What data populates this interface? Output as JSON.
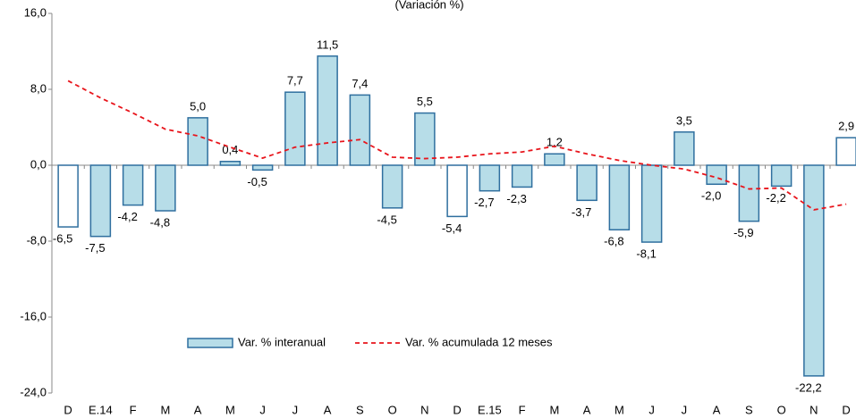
{
  "chart_data": {
    "type": "bar",
    "title": "(Variación %)",
    "categories": [
      "D",
      "E.14",
      "F",
      "M",
      "A",
      "M",
      "J",
      "J",
      "A",
      "S",
      "O",
      "N",
      "D",
      "E.15",
      "F",
      "M",
      "A",
      "M",
      "J",
      "J",
      "A",
      "S",
      "O",
      "N",
      "D"
    ],
    "series": [
      {
        "name": "Var. % interanual",
        "type": "bar",
        "stroke": "#2f6f9f",
        "colors": [
          "#ffffff",
          "#b7dde8",
          "#b7dde8",
          "#b7dde8",
          "#b7dde8",
          "#b7dde8",
          "#b7dde8",
          "#b7dde8",
          "#b7dde8",
          "#b7dde8",
          "#b7dde8",
          "#b7dde8",
          "#ffffff",
          "#b7dde8",
          "#b7dde8",
          "#b7dde8",
          "#b7dde8",
          "#b7dde8",
          "#b7dde8",
          "#b7dde8",
          "#b7dde8",
          "#b7dde8",
          "#b7dde8",
          "#b7dde8",
          "#ffffff"
        ],
        "values": [
          -6.5,
          -7.5,
          -4.2,
          -4.8,
          5.0,
          0.4,
          -0.5,
          7.7,
          11.5,
          7.4,
          -4.5,
          5.5,
          -5.4,
          -2.7,
          -2.3,
          1.2,
          -3.7,
          -6.8,
          -8.1,
          3.5,
          -2.0,
          -5.9,
          -2.2,
          -22.2,
          2.9
        ],
        "value_labels": [
          "-6,5",
          "-7,5",
          "-4,2",
          "-4,8",
          "5,0",
          "0,4",
          "-0,5",
          "7,7",
          "11,5",
          "7,4",
          "-4,5",
          "5,5",
          "-5,4",
          "-2,7",
          "-2,3",
          "1,2",
          "-3,7",
          "-6,8",
          "-8,1",
          "3,5",
          "-2,0",
          "-5,9",
          "-2,2",
          "-22,2",
          "2,9"
        ]
      },
      {
        "name": "Var. % acumulada 12 meses",
        "type": "line",
        "color": "#e8141b",
        "dashed": true,
        "values": [
          8.9,
          7.1,
          5.5,
          3.8,
          3.1,
          1.9,
          0.75,
          1.9,
          2.35,
          2.7,
          0.85,
          0.7,
          0.85,
          1.2,
          1.4,
          2.0,
          1.2,
          0.5,
          0.0,
          -0.4,
          -1.3,
          -2.5,
          -2.4,
          -4.7,
          -4.1
        ]
      }
    ],
    "ylim": [
      -24,
      16
    ],
    "yticks": [
      {
        "value": -24,
        "label": "-24,0"
      },
      {
        "value": -16,
        "label": "-16,0"
      },
      {
        "value": -8,
        "label": "-8,0"
      },
      {
        "value": 0,
        "label": "0,0"
      },
      {
        "value": 8,
        "label": "8,0"
      },
      {
        "value": 16,
        "label": "16,0"
      }
    ],
    "legend": "bottom"
  }
}
